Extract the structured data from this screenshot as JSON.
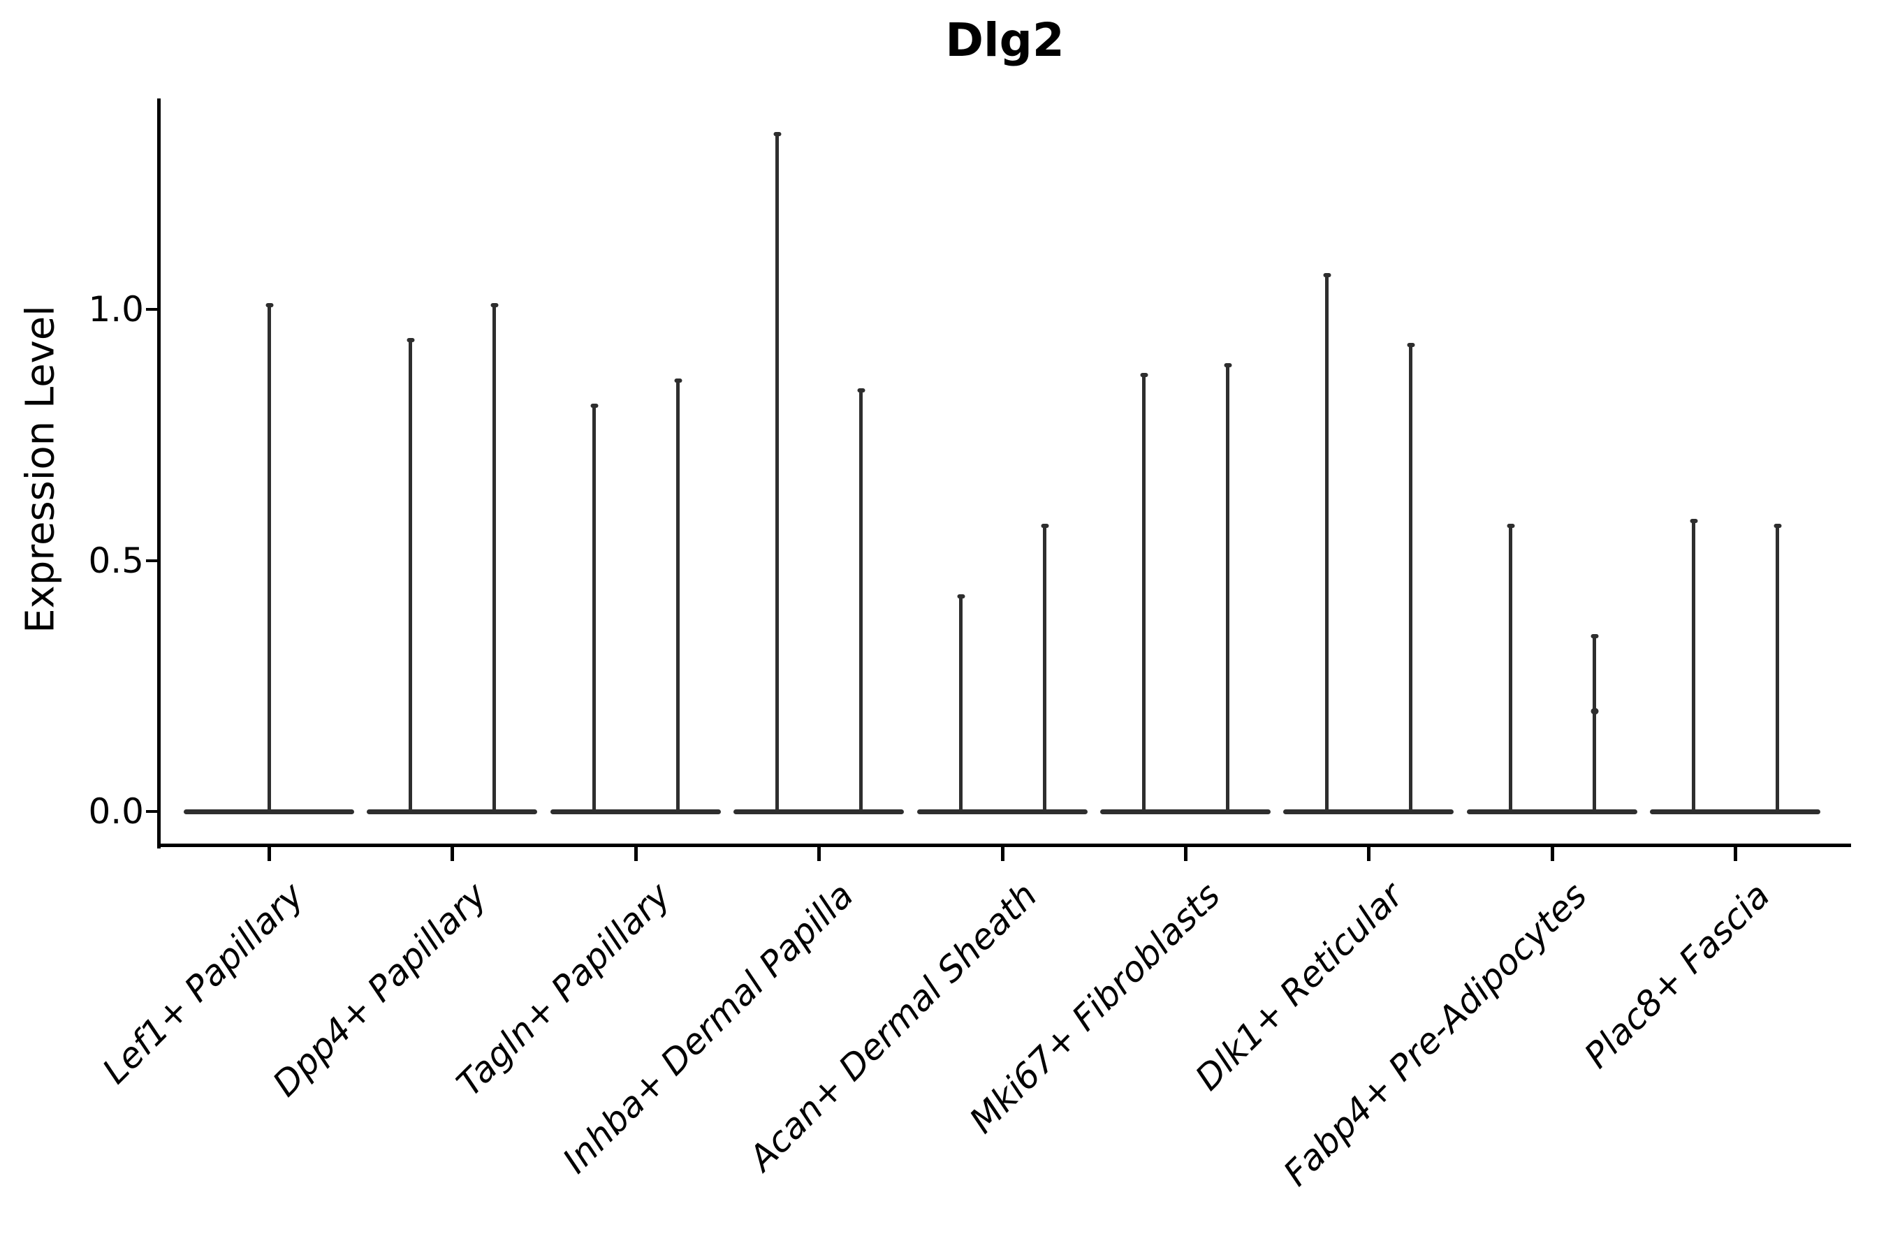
{
  "title": "Dlg2",
  "y_axis": {
    "label": "Expression Level",
    "tick_labels": [
      "1.0",
      "0.5",
      "0.0"
    ]
  },
  "x_axis": {
    "categories": [
      "Lef1+ Papillary",
      "Dpp4+ Papillary",
      "Tagln+ Papillary",
      "Inhba+ Dermal Papilla",
      "Acan+ Dermal Sheath",
      "Mki67+ Fibroblasts",
      "Dlk1+ Reticular",
      "Fabp4+ Pre-Adipocytes",
      "Plac8+ Fascia"
    ],
    "rotation_deg": 45,
    "italic": true
  },
  "style": {
    "violin_color": "#2e2e2e",
    "axis_color": "#000000",
    "text_color": "#000000",
    "background": "#ffffff"
  },
  "chart_data": {
    "type": "violin",
    "title": "Dlg2",
    "xlabel": "",
    "ylabel": "Expression Level",
    "ylim": [
      -0.07,
      1.42
    ],
    "yticks": [
      1.0,
      0.5,
      0.0
    ],
    "grid": false,
    "legend": "none",
    "categories": [
      "Lef1+ Papillary",
      "Dpp4+ Papillary",
      "Tagln+ Papillary",
      "Inhba+ Dermal Papilla",
      "Acan+ Dermal Sheath",
      "Mki67+ Fibroblasts",
      "Dlk1+ Reticular",
      "Fabp4+ Pre-Adipocytes",
      "Plac8+ Fascia"
    ],
    "description": "Each category shows a collapsed violin: a wide flat base at expression 0 and one or two thin spikes reaching the maximum expression value.",
    "series": [
      {
        "category": "Lef1+ Papillary",
        "violins": [
          {
            "position": "center",
            "max": 1.01
          }
        ]
      },
      {
        "category": "Dpp4+ Papillary",
        "violins": [
          {
            "position": "left",
            "max": 0.94
          },
          {
            "position": "right",
            "max": 1.01
          }
        ]
      },
      {
        "category": "Tagln+ Papillary",
        "violins": [
          {
            "position": "left",
            "max": 0.81
          },
          {
            "position": "right",
            "max": 0.86
          }
        ]
      },
      {
        "category": "Inhba+ Dermal Papilla",
        "violins": [
          {
            "position": "left",
            "max": 1.35
          },
          {
            "position": "right",
            "max": 0.84
          }
        ]
      },
      {
        "category": "Acan+ Dermal Sheath",
        "violins": [
          {
            "position": "left",
            "max": 0.43
          },
          {
            "position": "right",
            "max": 0.57
          }
        ]
      },
      {
        "category": "Mki67+ Fibroblasts",
        "violins": [
          {
            "position": "left",
            "max": 0.87
          },
          {
            "position": "right",
            "max": 0.89
          }
        ]
      },
      {
        "category": "Dlk1+ Reticular",
        "violins": [
          {
            "position": "left",
            "max": 1.07
          },
          {
            "position": "right",
            "max": 0.93
          }
        ]
      },
      {
        "category": "Fabp4+ Pre-Adipocytes",
        "violins": [
          {
            "position": "left",
            "max": 0.57
          },
          {
            "position": "right",
            "max": 0.35,
            "node": 0.2
          }
        ]
      },
      {
        "category": "Plac8+ Fascia",
        "violins": [
          {
            "position": "left",
            "max": 0.58
          },
          {
            "position": "right",
            "max": 0.57
          }
        ]
      }
    ]
  }
}
